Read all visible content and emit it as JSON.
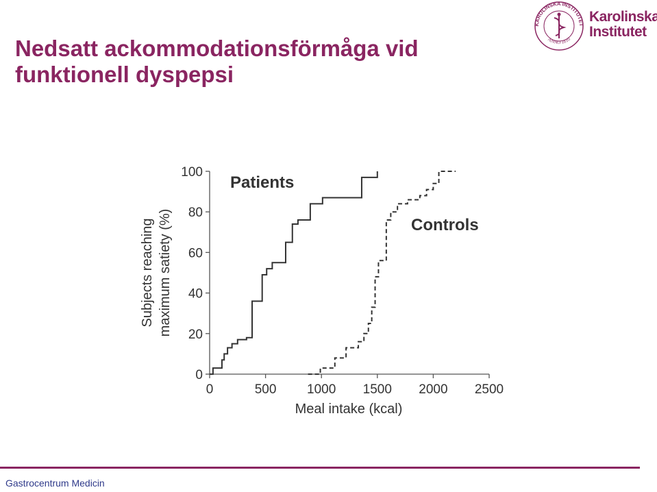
{
  "slide": {
    "title_line1": "Nedsatt ackommodationsförmåga vid",
    "title_line2": "funktionell dyspepsi",
    "footer": "Gastrocentrum Medicin"
  },
  "logo": {
    "seal_text": "KAROLINSKA INSTITUTET",
    "seal_year": "ANNO 1810",
    "name_line1": "Karolinska",
    "name_line2": "Institutet",
    "color": "#8a2561"
  },
  "chart_data": {
    "type": "line",
    "step": true,
    "xlabel": "Meal intake (kcal)",
    "ylabel_line1": "Subjects reaching",
    "ylabel_line2": "maximum satiety (%)",
    "xlim": [
      0,
      2500
    ],
    "ylim": [
      0,
      100
    ],
    "xticks": [
      "0",
      "500",
      "1000",
      "1500",
      "2000",
      "2500"
    ],
    "yticks": [
      "0",
      "20",
      "40",
      "60",
      "80",
      "100"
    ],
    "grid": false,
    "series": [
      {
        "name": "Patients",
        "line_style": "solid",
        "color": "#333333",
        "x": [
          0,
          30,
          110,
          130,
          160,
          200,
          250,
          330,
          380,
          420,
          470,
          510,
          560,
          680,
          740,
          790,
          900,
          1010,
          1360,
          1500
        ],
        "y": [
          0,
          3,
          7,
          10,
          13,
          15,
          17,
          18,
          36,
          36,
          49,
          52,
          55,
          65,
          74,
          76,
          84,
          87,
          97,
          100
        ]
      },
      {
        "name": "Controls",
        "line_style": "dashed",
        "color": "#333333",
        "x": [
          880,
          990,
          1120,
          1220,
          1330,
          1380,
          1420,
          1450,
          1480,
          1510,
          1580,
          1620,
          1680,
          1770,
          1880,
          1940,
          2000,
          2050,
          2200
        ],
        "y": [
          0,
          3,
          8,
          13,
          16,
          20,
          25,
          33,
          48,
          56,
          76,
          80,
          84,
          86,
          88,
          91,
          94,
          100,
          100
        ]
      }
    ]
  }
}
